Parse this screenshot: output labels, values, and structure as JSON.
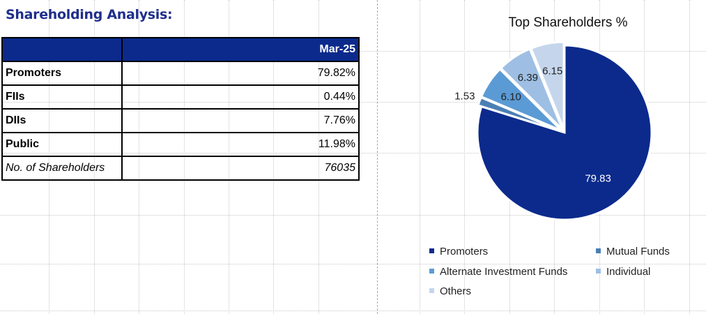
{
  "title": "Shareholding Analysis:",
  "table": {
    "header": [
      "",
      "Mar-25"
    ],
    "rows": [
      {
        "label": "Promoters",
        "value": "79.82%",
        "italic": false
      },
      {
        "label": "FIIs",
        "value": "0.44%",
        "italic": false
      },
      {
        "label": "DIIs",
        "value": "7.76%",
        "italic": false
      },
      {
        "label": "Public",
        "value": "11.98%",
        "italic": false
      },
      {
        "label": "No. of Shareholders",
        "value": "76035",
        "italic": true
      }
    ]
  },
  "chart_data": {
    "type": "pie",
    "title": "Top Shareholders %",
    "categories": [
      "Promoters",
      "Mutual Funds",
      "Alternate Investment Funds",
      "Individual",
      "Others"
    ],
    "values": [
      79.83,
      1.53,
      6.1,
      6.39,
      6.15
    ],
    "labels": [
      "79.83",
      "1.53",
      "6.10",
      "6.39",
      "6.15"
    ],
    "colors": [
      "#0b2a8c",
      "#4a7fb5",
      "#5b9bd5",
      "#9ebfe3",
      "#c5d6ec"
    ],
    "legend_position": "bottom"
  }
}
